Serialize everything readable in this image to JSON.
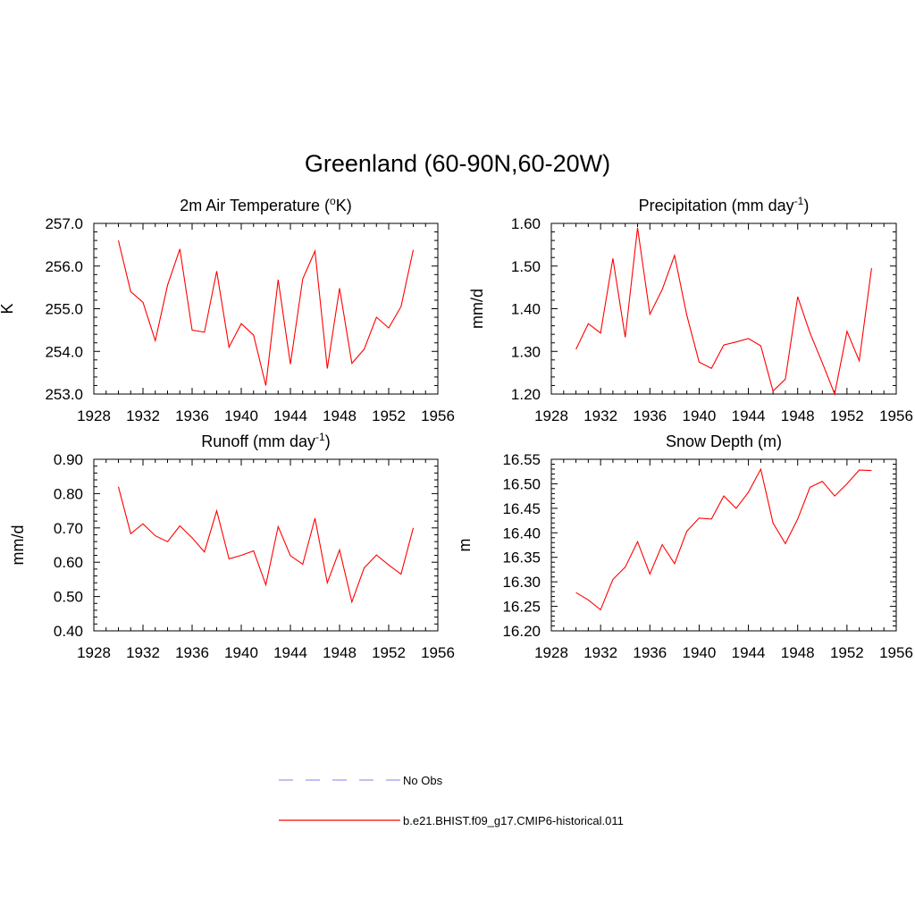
{
  "figure_title": "Greenland (60-90N,60-20W)",
  "legend": {
    "no_obs_label": "No Obs",
    "model_label": "b.e21.BHIST.f09_g17.CMIP6-historical.011",
    "no_obs_color": "#9a9af0",
    "model_color": "#ff0000"
  },
  "chart_data": [
    {
      "type": "line",
      "title": "2m Air Temperature (",
      "title_sup": "o",
      "title_after": "K)",
      "ylabel": "K",
      "ylim": [
        253.0,
        257.0
      ],
      "yticks": [
        "253.0",
        "254.0",
        "255.0",
        "256.0",
        "257.0"
      ],
      "xlim": [
        1928,
        1956
      ],
      "xticks": [
        "1928",
        "1932",
        "1936",
        "1940",
        "1944",
        "1948",
        "1952",
        "1956"
      ],
      "series": [
        {
          "x": [
            1930,
            1931,
            1932,
            1933,
            1934,
            1935,
            1936,
            1937,
            1938,
            1939,
            1940,
            1941,
            1942,
            1943,
            1944,
            1945,
            1946,
            1947,
            1948,
            1949,
            1950,
            1951,
            1952,
            1953,
            1954
          ],
          "values": [
            256.6,
            255.4,
            255.15,
            254.25,
            255.55,
            256.4,
            254.5,
            254.45,
            255.88,
            254.1,
            254.65,
            254.38,
            253.2,
            255.68,
            253.7,
            255.7,
            256.35,
            253.6,
            255.48,
            253.72,
            254.05,
            254.8,
            254.55,
            255.05,
            256.38
          ],
          "color": "#ff0000"
        }
      ]
    },
    {
      "type": "line",
      "title": "Precipitation (mm day",
      "title_sup": "-1",
      "title_after": ")",
      "ylabel": "mm/d",
      "ylim": [
        1.2,
        1.6
      ],
      "yticks": [
        "1.20",
        "1.30",
        "1.40",
        "1.50",
        "1.60"
      ],
      "xlim": [
        1928,
        1956
      ],
      "xticks": [
        "1928",
        "1932",
        "1936",
        "1940",
        "1944",
        "1948",
        "1952",
        "1956"
      ],
      "series": [
        {
          "x": [
            1930,
            1931,
            1932,
            1933,
            1934,
            1935,
            1936,
            1937,
            1938,
            1939,
            1940,
            1941,
            1942,
            1943,
            1944,
            1945,
            1946,
            1947,
            1948,
            1949,
            1950,
            1951,
            1952,
            1953,
            1954
          ],
          "values": [
            1.305,
            1.365,
            1.343,
            1.518,
            1.333,
            1.59,
            1.387,
            1.445,
            1.525,
            1.385,
            1.275,
            1.26,
            1.315,
            1.322,
            1.33,
            1.313,
            1.207,
            1.235,
            1.428,
            1.343,
            1.273,
            1.2,
            1.347,
            1.278,
            1.495
          ],
          "color": "#ff0000"
        }
      ]
    },
    {
      "type": "line",
      "title": "Runoff (mm day",
      "title_sup": "-1",
      "title_after": ")",
      "ylabel": "mm/d",
      "ylim": [
        0.4,
        0.9
      ],
      "yticks": [
        "0.40",
        "0.50",
        "0.60",
        "0.70",
        "0.80",
        "0.90"
      ],
      "xlim": [
        1928,
        1956
      ],
      "xticks": [
        "1928",
        "1932",
        "1936",
        "1940",
        "1944",
        "1948",
        "1952",
        "1956"
      ],
      "series": [
        {
          "x": [
            1930,
            1931,
            1932,
            1933,
            1934,
            1935,
            1936,
            1937,
            1938,
            1939,
            1940,
            1941,
            1942,
            1943,
            1944,
            1945,
            1946,
            1947,
            1948,
            1949,
            1950,
            1951,
            1952,
            1953,
            1954
          ],
          "values": [
            0.82,
            0.683,
            0.712,
            0.677,
            0.66,
            0.706,
            0.671,
            0.63,
            0.75,
            0.61,
            0.62,
            0.633,
            0.534,
            0.704,
            0.619,
            0.594,
            0.728,
            0.54,
            0.636,
            0.484,
            0.583,
            0.621,
            0.592,
            0.565,
            0.7
          ],
          "color": "#ff0000"
        }
      ]
    },
    {
      "type": "line",
      "title": "Snow Depth (m)",
      "title_sup": "",
      "title_after": "",
      "ylabel": "m",
      "ylim": [
        16.2,
        16.55
      ],
      "yticks": [
        "16.20",
        "16.25",
        "16.30",
        "16.35",
        "16.40",
        "16.45",
        "16.50",
        "16.55"
      ],
      "xlim": [
        1928,
        1956
      ],
      "xticks": [
        "1928",
        "1932",
        "1936",
        "1940",
        "1944",
        "1948",
        "1952",
        "1956"
      ],
      "series": [
        {
          "x": [
            1930,
            1931,
            1932,
            1933,
            1934,
            1935,
            1936,
            1937,
            1938,
            1939,
            1940,
            1941,
            1942,
            1943,
            1944,
            1945,
            1946,
            1947,
            1948,
            1949,
            1950,
            1951,
            1952,
            1953,
            1954
          ],
          "values": [
            16.278,
            16.263,
            16.243,
            16.305,
            16.33,
            16.382,
            16.316,
            16.376,
            16.337,
            16.403,
            16.43,
            16.428,
            16.475,
            16.45,
            16.483,
            16.53,
            16.42,
            16.378,
            16.428,
            16.493,
            16.505,
            16.475,
            16.5,
            16.528,
            16.527
          ],
          "color": "#ff0000"
        }
      ]
    }
  ]
}
